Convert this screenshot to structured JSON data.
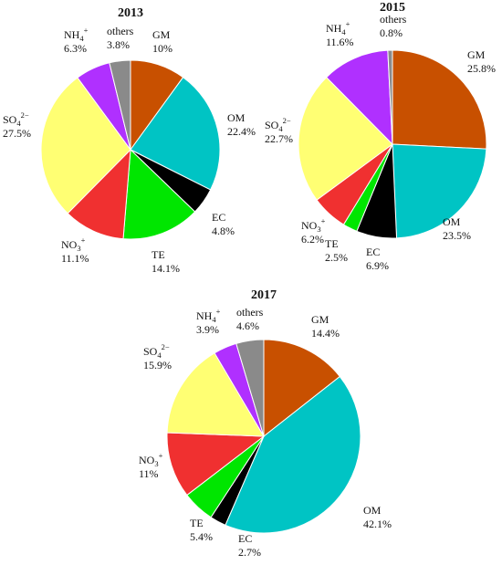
{
  "colors": {
    "GM": "#c85000",
    "OM": "#00c4c4",
    "EC": "#000000",
    "TE": "#00e600",
    "NO3": "#f03030",
    "SO4": "#ffff73",
    "NH4": "#b030ff",
    "others": "#8a8a8a"
  },
  "chart_data": [
    {
      "type": "pie",
      "title": "2013",
      "slices": [
        {
          "key": "GM",
          "name": "GM",
          "value": 10,
          "label": "10%"
        },
        {
          "key": "OM",
          "name": "OM",
          "value": 22.4,
          "label": "22.4%"
        },
        {
          "key": "EC",
          "name": "EC",
          "value": 4.8,
          "label": "4.8%"
        },
        {
          "key": "TE",
          "name": "TE",
          "value": 14.1,
          "label": "14.1%"
        },
        {
          "key": "NO3",
          "name": "NO",
          "name_sub": "3",
          "name_sup": "+",
          "value": 11.1,
          "label": "11.1%"
        },
        {
          "key": "SO4",
          "name": "SO",
          "name_sub": "4",
          "name_sup": "2−",
          "value": 27.5,
          "label": "27.5%"
        },
        {
          "key": "NH4",
          "name": "NH",
          "name_sub": "4",
          "name_sup": "+",
          "value": 6.3,
          "label": "6.3%"
        },
        {
          "key": "others",
          "name": "others",
          "value": 3.8,
          "label": "3.8%"
        }
      ]
    },
    {
      "type": "pie",
      "title": "2015",
      "slices": [
        {
          "key": "GM",
          "name": "GM",
          "value": 25.8,
          "label": "25.8%"
        },
        {
          "key": "OM",
          "name": "OM",
          "value": 23.5,
          "label": "23.5%"
        },
        {
          "key": "EC",
          "name": "EC",
          "value": 6.9,
          "label": "6.9%"
        },
        {
          "key": "TE",
          "name": "TE",
          "value": 2.5,
          "label": "2.5%"
        },
        {
          "key": "NO3",
          "name": "NO",
          "name_sub": "3",
          "name_sup": "+",
          "value": 6.2,
          "label": "6.2%"
        },
        {
          "key": "SO4",
          "name": "SO",
          "name_sub": "4",
          "name_sup": "2−",
          "value": 22.7,
          "label": "22.7%"
        },
        {
          "key": "NH4",
          "name": "NH",
          "name_sub": "4",
          "name_sup": "+",
          "value": 11.6,
          "label": "11.6%"
        },
        {
          "key": "others",
          "name": "others",
          "value": 0.8,
          "label": "0.8%"
        }
      ]
    },
    {
      "type": "pie",
      "title": "2017",
      "slices": [
        {
          "key": "GM",
          "name": "GM",
          "value": 14.4,
          "label": "14.4%"
        },
        {
          "key": "OM",
          "name": "OM",
          "value": 42.1,
          "label": "42.1%"
        },
        {
          "key": "EC",
          "name": "EC",
          "value": 2.7,
          "label": "2.7%"
        },
        {
          "key": "TE",
          "name": "TE",
          "value": 5.4,
          "label": "5.4%"
        },
        {
          "key": "NO3",
          "name": "NO",
          "name_sub": "3",
          "name_sup": "+",
          "value": 11,
          "label": "11%"
        },
        {
          "key": "SO4",
          "name": "SO",
          "name_sub": "4",
          "name_sup": "2−",
          "value": 15.9,
          "label": "15.9%"
        },
        {
          "key": "NH4",
          "name": "NH",
          "name_sub": "4",
          "name_sup": "+",
          "value": 3.9,
          "label": "3.9%"
        },
        {
          "key": "others",
          "name": "others",
          "value": 4.6,
          "label": "4.6%"
        }
      ]
    }
  ]
}
